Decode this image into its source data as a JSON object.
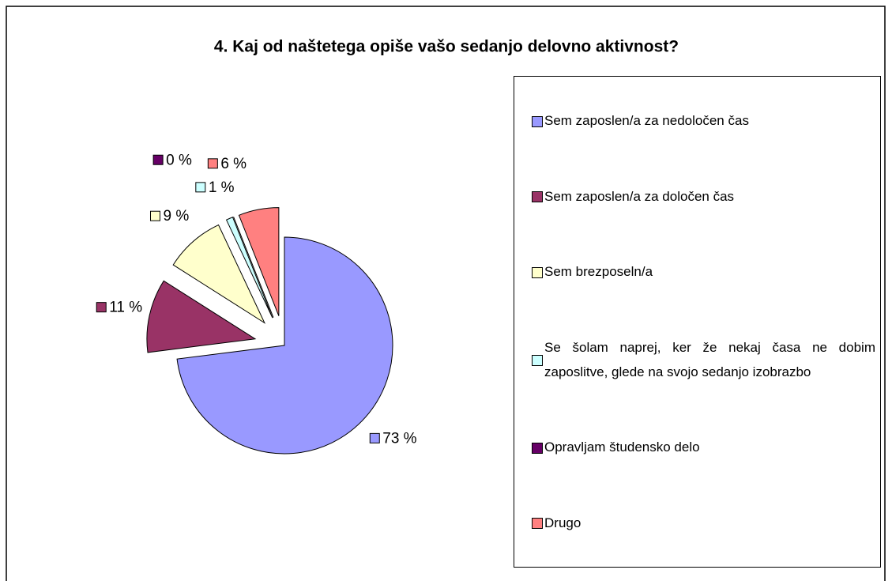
{
  "chart_data": {
    "type": "pie",
    "title": "4. Kaj od naštetega opiše vašo sedanjo delovno aktivnost?",
    "categories": [
      "Sem zaposlen/a za nedoločen čas",
      "Sem zaposlen/a za določen čas",
      "Sem brezposeln/a",
      "Se šolam naprej, ker že nekaj časa ne dobim zaposlitve, glede na svojo sedanjo izobrazbo",
      "Opravljam študensko delo",
      "Drugo"
    ],
    "values": [
      73,
      11,
      9,
      1,
      0,
      6
    ],
    "value_labels": [
      "73 %",
      "11 %",
      "9 %",
      "1 %",
      "0 %",
      "6 %"
    ],
    "colors": [
      "#9999ff",
      "#993366",
      "#ffffcc",
      "#ccffff",
      "#660066",
      "#ff8080"
    ],
    "legend": "right"
  }
}
